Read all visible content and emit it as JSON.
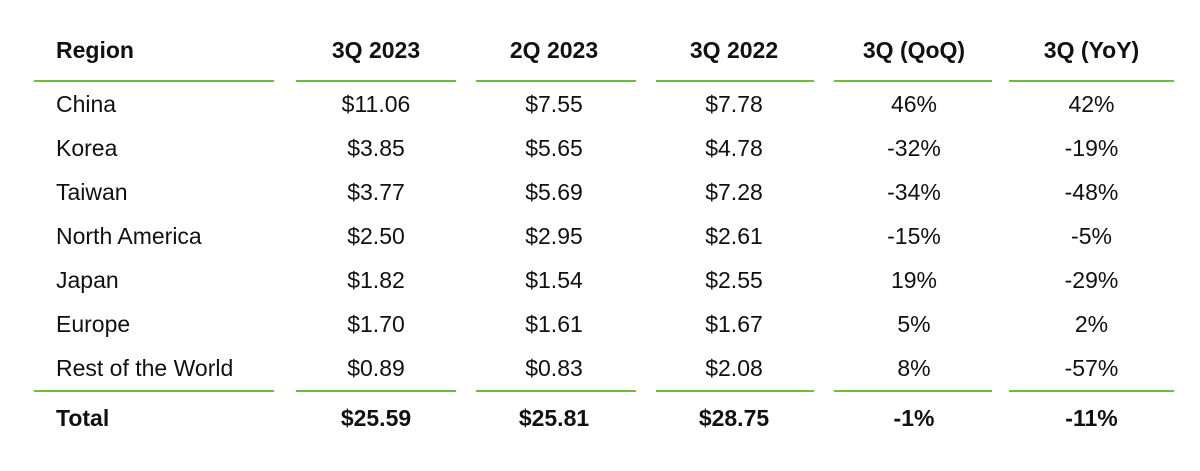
{
  "table": {
    "columns": [
      "Region",
      "3Q 2023",
      "2Q 2023",
      "3Q 2022",
      "3Q (QoQ)",
      "3Q (YoY)"
    ],
    "rows": [
      [
        "China",
        "$11.06",
        "$7.55",
        "$7.78",
        "46%",
        "42%"
      ],
      [
        "Korea",
        "$3.85",
        "$5.65",
        "$4.78",
        "-32%",
        "-19%"
      ],
      [
        "Taiwan",
        "$3.77",
        "$5.69",
        "$7.28",
        "-34%",
        "-48%"
      ],
      [
        "North America",
        "$2.50",
        "$2.95",
        "$2.61",
        "-15%",
        "-5%"
      ],
      [
        "Japan",
        "$1.82",
        "$1.54",
        "$2.55",
        "19%",
        "-29%"
      ],
      [
        "Europe",
        "$1.70",
        "$1.61",
        "$1.67",
        "5%",
        "2%"
      ],
      [
        "Rest of the World",
        "$0.89",
        "$0.83",
        "$2.08",
        "8%",
        "-57%"
      ]
    ],
    "total": [
      "Total",
      "$25.59",
      "$25.81",
      "$28.75",
      "-1%",
      "-11%"
    ]
  },
  "colors": {
    "rule": "#6abf3a",
    "text": "#111111",
    "background": "#ffffff"
  }
}
